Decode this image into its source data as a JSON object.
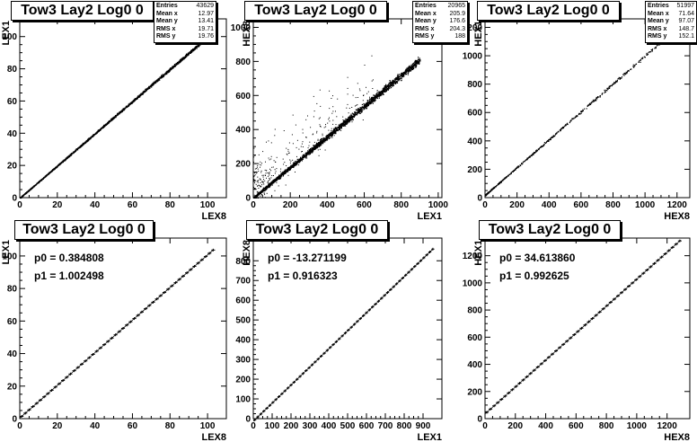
{
  "chart_data": [
    {
      "type": "scatter",
      "title": "Tow3 Lay2 Log0 0",
      "xlabel": "LEX8",
      "ylabel": "LEX1",
      "xlim": [
        0,
        110
      ],
      "ylim": [
        0,
        111
      ],
      "xticks": [
        "0",
        "20",
        "40",
        "60",
        "80",
        "100"
      ],
      "xtick_vals": [
        0,
        20,
        40,
        60,
        80,
        100
      ],
      "yticks": [
        "0",
        "20",
        "40",
        "60",
        "80",
        "100"
      ],
      "ytick_vals": [
        0,
        20,
        40,
        60,
        80,
        100
      ],
      "stats": [
        [
          "Entries",
          "43629"
        ],
        [
          "Mean x",
          "12.97"
        ],
        [
          "Mean y",
          "13.41"
        ],
        [
          "RMS x",
          "19.71"
        ],
        [
          "RMS y",
          "19.76"
        ]
      ],
      "trend": {
        "x": [
          0,
          104
        ],
        "y": [
          0,
          104
        ]
      },
      "spread": 0.6,
      "outliers": 0
    },
    {
      "type": "scatter",
      "title": "Tow3 Lay2 Log0 0",
      "xlabel": "LEX1",
      "ylabel": "HEX8",
      "xlim": [
        0,
        1020
      ],
      "ylim": [
        0,
        1050
      ],
      "xticks": [
        "0",
        "200",
        "400",
        "600",
        "800",
        "1000"
      ],
      "xtick_vals": [
        0,
        200,
        400,
        600,
        800,
        1000
      ],
      "yticks": [
        "0",
        "200",
        "400",
        "600",
        "800",
        "1000"
      ],
      "ytick_vals": [
        0,
        200,
        400,
        600,
        800,
        1000
      ],
      "stats": [
        [
          "Entries",
          "20965"
        ],
        [
          "Mean x",
          "205.9"
        ],
        [
          "Mean y",
          "176.6"
        ],
        [
          "RMS x",
          "204.3"
        ],
        [
          "RMS y",
          "188"
        ]
      ],
      "trend": {
        "x": [
          0,
          900
        ],
        "y": [
          0,
          810
        ]
      },
      "spread": 16,
      "outliers": 320
    },
    {
      "type": "scatter",
      "title": "Tow3 Lay2 Log0 0",
      "xlabel": "HEX8",
      "ylabel": "HEX1",
      "xlim": [
        0,
        1280
      ],
      "ylim": [
        0,
        1260
      ],
      "xticks": [
        "0",
        "200",
        "400",
        "600",
        "800",
        "1000",
        "1200"
      ],
      "xtick_vals": [
        0,
        200,
        400,
        600,
        800,
        1000,
        1200
      ],
      "yticks": [
        "0",
        "200",
        "400",
        "600",
        "800",
        "1000",
        "1200"
      ],
      "ytick_vals": [
        0,
        200,
        400,
        600,
        800,
        1000,
        1200
      ],
      "stats": [
        [
          "Entries",
          "51997"
        ],
        [
          "Mean x",
          "71.64"
        ],
        [
          "Mean y",
          "97.07"
        ],
        [
          "RMS x",
          "148.7"
        ],
        [
          "RMS y",
          "152.1"
        ]
      ],
      "trend": {
        "x": [
          0,
          1110
        ],
        "y": [
          20,
          1110
        ]
      },
      "spread": 8,
      "outliers": 0,
      "sparse": true
    },
    {
      "type": "line",
      "title": "Tow3 Lay2 Log0 0",
      "xlabel": "LEX8",
      "ylabel": "LEX1",
      "xlim": [
        0,
        110
      ],
      "ylim": [
        0,
        111
      ],
      "xticks": [
        "0",
        "20",
        "40",
        "60",
        "80",
        "100"
      ],
      "xtick_vals": [
        0,
        20,
        40,
        60,
        80,
        100
      ],
      "yticks": [
        "0",
        "20",
        "40",
        "60",
        "80",
        "100"
      ],
      "ytick_vals": [
        0,
        20,
        40,
        60,
        80,
        100
      ],
      "fit": [
        "p0 = 0.384808",
        "p1 = 1.002498"
      ],
      "fit_params": {
        "p0": 0.384808,
        "p1": 1.002498
      },
      "x_range": [
        0,
        103
      ],
      "step": 2
    },
    {
      "type": "line",
      "title": "Tow3 Lay2 Log0 0",
      "xlabel": "LEX1",
      "ylabel": "HEX8",
      "xlim": [
        0,
        1000
      ],
      "ylim": [
        0,
        915
      ],
      "xticks": [
        "0",
        "100",
        "200",
        "300",
        "400",
        "500",
        "600",
        "700",
        "800",
        "900"
      ],
      "xtick_vals": [
        0,
        100,
        200,
        300,
        400,
        500,
        600,
        700,
        800,
        900
      ],
      "yticks": [
        "0",
        "100",
        "200",
        "300",
        "400",
        "500",
        "600",
        "700",
        "800"
      ],
      "ytick_vals": [
        0,
        100,
        200,
        300,
        400,
        500,
        600,
        700,
        800
      ],
      "fit": [
        "p0 = -13.271199",
        "p1 = 0.916323"
      ],
      "fit_params": {
        "p0": -13.271199,
        "p1": 0.916323
      },
      "x_range": [
        0,
        950
      ],
      "step": 16
    },
    {
      "type": "line",
      "title": "Tow3 Lay2 Log0 0",
      "xlabel": "HEX8",
      "ylabel": "HEX1",
      "xlim": [
        0,
        1350
      ],
      "ylim": [
        0,
        1330
      ],
      "xticks": [
        "0",
        "200",
        "400",
        "600",
        "800",
        "1000",
        "1200"
      ],
      "xtick_vals": [
        0,
        200,
        400,
        600,
        800,
        1000,
        1200
      ],
      "yticks": [
        "0",
        "200",
        "400",
        "600",
        "800",
        "1000",
        "1200"
      ],
      "ytick_vals": [
        0,
        200,
        400,
        600,
        800,
        1000,
        1200
      ],
      "fit": [
        "p0 = 34.613860",
        "p1 = 0.992625"
      ],
      "fit_params": {
        "p0": 34.61386,
        "p1": 0.992625
      },
      "x_range": [
        0,
        1290
      ],
      "step": 24
    }
  ]
}
